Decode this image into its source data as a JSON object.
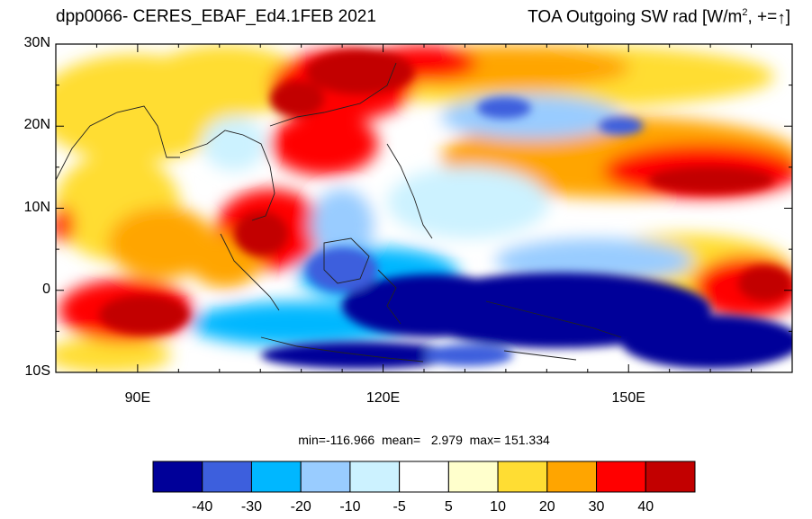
{
  "title_left": "dpp0066- CERES_EBAF_Ed4.1FEB 2021",
  "title_right": {
    "text": "TOA Outgoing SW rad [W/m",
    "sup": "2",
    "after": ", +=",
    "arrow": "↑",
    "close": "]"
  },
  "map": {
    "lat_range": [
      -10,
      30
    ],
    "lon_range": [
      80,
      170
    ],
    "lat_ticks": [
      {
        "value": 30,
        "label": "30N"
      },
      {
        "value": 20,
        "label": "20N"
      },
      {
        "value": 10,
        "label": "10N"
      },
      {
        "value": 0,
        "label": "0"
      },
      {
        "value": -10,
        "label": "10S"
      }
    ],
    "lon_ticks": [
      {
        "value": 90,
        "label": "90E"
      },
      {
        "value": 120,
        "label": "120E"
      },
      {
        "value": 150,
        "label": "150E"
      }
    ]
  },
  "stats": {
    "text": "min=-116.966  mean=   2.979  max= 151.334"
  },
  "colorbar": {
    "colors": [
      "#000099",
      "#3d5fdd",
      "#00b7ff",
      "#99ccff",
      "#ccf2ff",
      "#ffffff",
      "#ffffcc",
      "#ffdd33",
      "#ffa500",
      "#ff0000",
      "#c20000"
    ],
    "labels": [
      "-40",
      "-30",
      "-20",
      "-10",
      "-5",
      "5",
      "10",
      "20",
      "30",
      "40"
    ]
  }
}
